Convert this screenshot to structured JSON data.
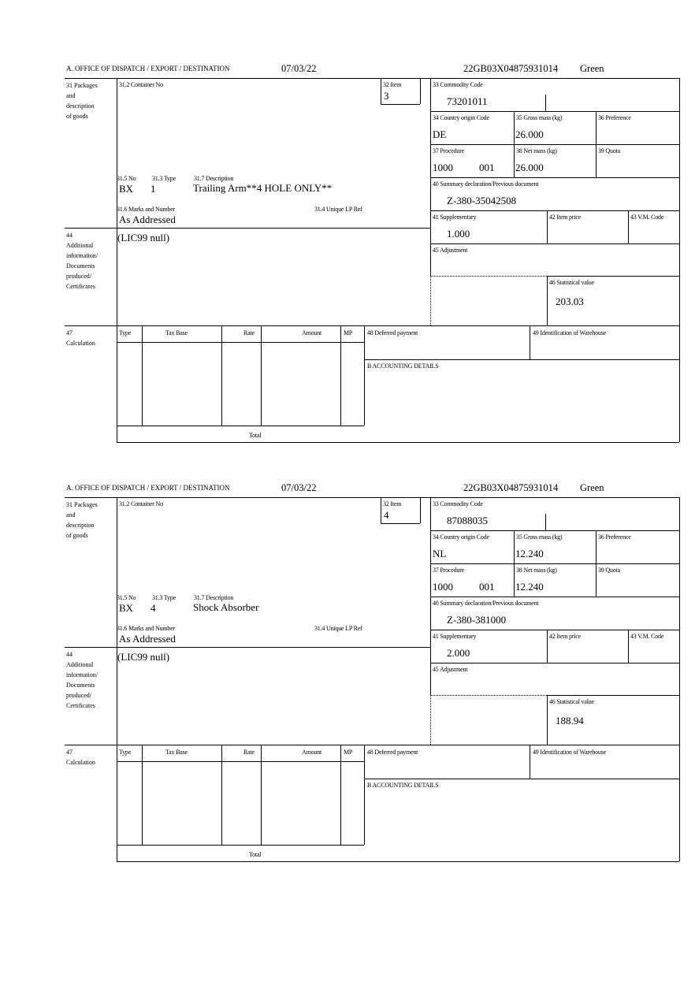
{
  "forms": [
    {
      "header": {
        "office": "A. OFFICE OF DISPATCH / EXPORT / DESTINATION",
        "date": "07/03/22",
        "reference": "22GB03X04875931014",
        "route": "Green"
      },
      "labels": {
        "packages": "31 Packages\nand\ndescription\nof goods",
        "container": "31.2 Container No",
        "item": "32 Item",
        "no": "31.5 No",
        "type": "31.3 Type",
        "description": "31.7 Description",
        "marks": "31.6 Marks and Number",
        "unique_lp": "31.4 Unique LP Ref",
        "additional": "44\nAdditional\ninformation/\nDocuments\nproduced/\nCertificates",
        "commodity": "33 Commodity Code",
        "country": "34 Country origin Code",
        "gross": "35 Gross mass (kg)",
        "preference": "36 Preference",
        "procedure": "37 Procedure",
        "net": "38 Net mass (kg)",
        "quota": "39 Quota",
        "summary": "40 Summary declaration/Previous document",
        "supplementary": "41 Supplementary",
        "item_price": "42 Item price",
        "vm_code": "43 V.M. Code",
        "adjustment": "45 Adjustment",
        "statistical": "46 Statistical value",
        "calculation": "47\nCalculation",
        "calc_type": "Type",
        "calc_tax_base": "Tax Base",
        "calc_rate": "Rate",
        "calc_amount": "Amount",
        "calc_mp": "MP",
        "deferred": "48 Deferred payment",
        "warehouse": "49 Identification of Warehouse",
        "accounting": "B ACCOUNTING DETAILS",
        "total": "Total"
      },
      "values": {
        "item": "3",
        "package_kind": "BX",
        "package_count": "1",
        "description": "Trailing Arm**4 HOLE ONLY**",
        "marks": "As Addressed",
        "additional": "(LIC99 null)",
        "commodity": "73201011",
        "country": "DE",
        "gross": "26.000",
        "procedure": "1000",
        "procedure_code": "001",
        "net": "26.000",
        "summary": "Z-380-35042508",
        "supplementary": "1.000",
        "statistical": "203.03"
      }
    },
    {
      "header": {
        "office": "A. OFFICE OF DISPATCH / EXPORT / DESTINATION",
        "date": "07/03/22",
        "reference": "22GB03X04875931014",
        "route": "Green"
      },
      "labels": {
        "packages": "31 Packages\nand\ndescription\nof goods",
        "container": "31.2 Container No",
        "item": "32 Item",
        "no": "31.5 No",
        "type": "31.3 Type",
        "description": "31.7 Description",
        "marks": "31.6 Marks and Number",
        "unique_lp": "31.4 Unique LP Ref",
        "additional": "44\nAdditional\ninformation/\nDocuments\nproduced/\nCertificates",
        "commodity": "33 Commodity Code",
        "country": "34 Country origin Code",
        "gross": "35 Gross mass (kg)",
        "preference": "36 Preference",
        "procedure": "37 Procedure",
        "net": "38 Net mass (kg)",
        "quota": "39 Quota",
        "summary": "40 Summary declaration/Previous document",
        "supplementary": "41 Supplementary",
        "item_price": "42 Item price",
        "vm_code": "43 V.M. Code",
        "adjustment": "45 Adjustment",
        "statistical": "46 Statistical value",
        "calculation": "47\nCalculation",
        "calc_type": "Type",
        "calc_tax_base": "Tax Base",
        "calc_rate": "Rate",
        "calc_amount": "Amount",
        "calc_mp": "MP",
        "deferred": "48 Deferred payment",
        "warehouse": "49 Identification of Warehouse",
        "accounting": "B ACCOUNTING DETAILS",
        "total": "Total"
      },
      "values": {
        "item": "4",
        "package_kind": "BX",
        "package_count": "4",
        "description": "Shock Absorber",
        "marks": "As Addressed",
        "additional": "(LIC99 null)",
        "commodity": "87088035",
        "country": "NL",
        "gross": "12.240",
        "procedure": "1000",
        "procedure_code": "001",
        "net": "12.240",
        "summary": "Z-380-381000",
        "supplementary": "2.000",
        "statistical": "188.94"
      }
    }
  ]
}
